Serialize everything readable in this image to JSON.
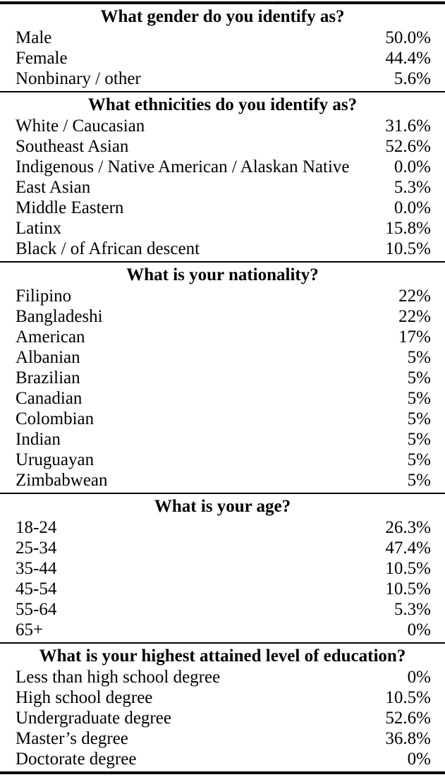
{
  "page": {
    "background_color": "#ffffff",
    "text_color": "#000000",
    "rule_color": "#000000"
  },
  "table": {
    "type": "table",
    "columns": [
      "answer_option",
      "percentage"
    ],
    "sections": [
      {
        "question": "What gender do you identify as?",
        "rows": [
          {
            "label": "Male",
            "value": "50.0%"
          },
          {
            "label": "Female",
            "value": "44.4%"
          },
          {
            "label": "Nonbinary / other",
            "value": "5.6%"
          }
        ]
      },
      {
        "question": "What ethnicities do you identify as?",
        "rows": [
          {
            "label": "White / Caucasian",
            "value": "31.6%"
          },
          {
            "label": "Southeast Asian",
            "value": "52.6%"
          },
          {
            "label": "Indigenous / Native American / Alaskan Native",
            "value": "0.0%"
          },
          {
            "label": "East Asian",
            "value": "5.3%"
          },
          {
            "label": "Middle Eastern",
            "value": "0.0%"
          },
          {
            "label": "Latinx",
            "value": "15.8%"
          },
          {
            "label": "Black / of African descent",
            "value": "10.5%"
          }
        ]
      },
      {
        "question": "What is your nationality?",
        "rows": [
          {
            "label": "Filipino",
            "value": "22%"
          },
          {
            "label": "Bangladeshi",
            "value": "22%"
          },
          {
            "label": "American",
            "value": "17%"
          },
          {
            "label": "Albanian",
            "value": "5%"
          },
          {
            "label": "Brazilian",
            "value": "5%"
          },
          {
            "label": "Canadian",
            "value": "5%"
          },
          {
            "label": "Colombian",
            "value": "5%"
          },
          {
            "label": "Indian",
            "value": "5%"
          },
          {
            "label": "Uruguayan",
            "value": "5%"
          },
          {
            "label": "Zimbabwean",
            "value": "5%"
          }
        ]
      },
      {
        "question": "What is your age?",
        "rows": [
          {
            "label": "18-24",
            "value": "26.3%"
          },
          {
            "label": "25-34",
            "value": "47.4%"
          },
          {
            "label": "35-44",
            "value": "10.5%"
          },
          {
            "label": "45-54",
            "value": "10.5%"
          },
          {
            "label": "55-64",
            "value": "5.3%"
          },
          {
            "label": "65+",
            "value": "0%"
          }
        ]
      },
      {
        "question": "What is your highest attained level of education?",
        "rows": [
          {
            "label": "Less than high school degree",
            "value": "0%"
          },
          {
            "label": "High school degree",
            "value": "10.5%"
          },
          {
            "label": "Undergraduate degree",
            "value": "52.6%"
          },
          {
            "label": "Master’s degree",
            "value": "36.8%"
          },
          {
            "label": "Doctorate degree",
            "value": "0%"
          }
        ]
      }
    ]
  }
}
